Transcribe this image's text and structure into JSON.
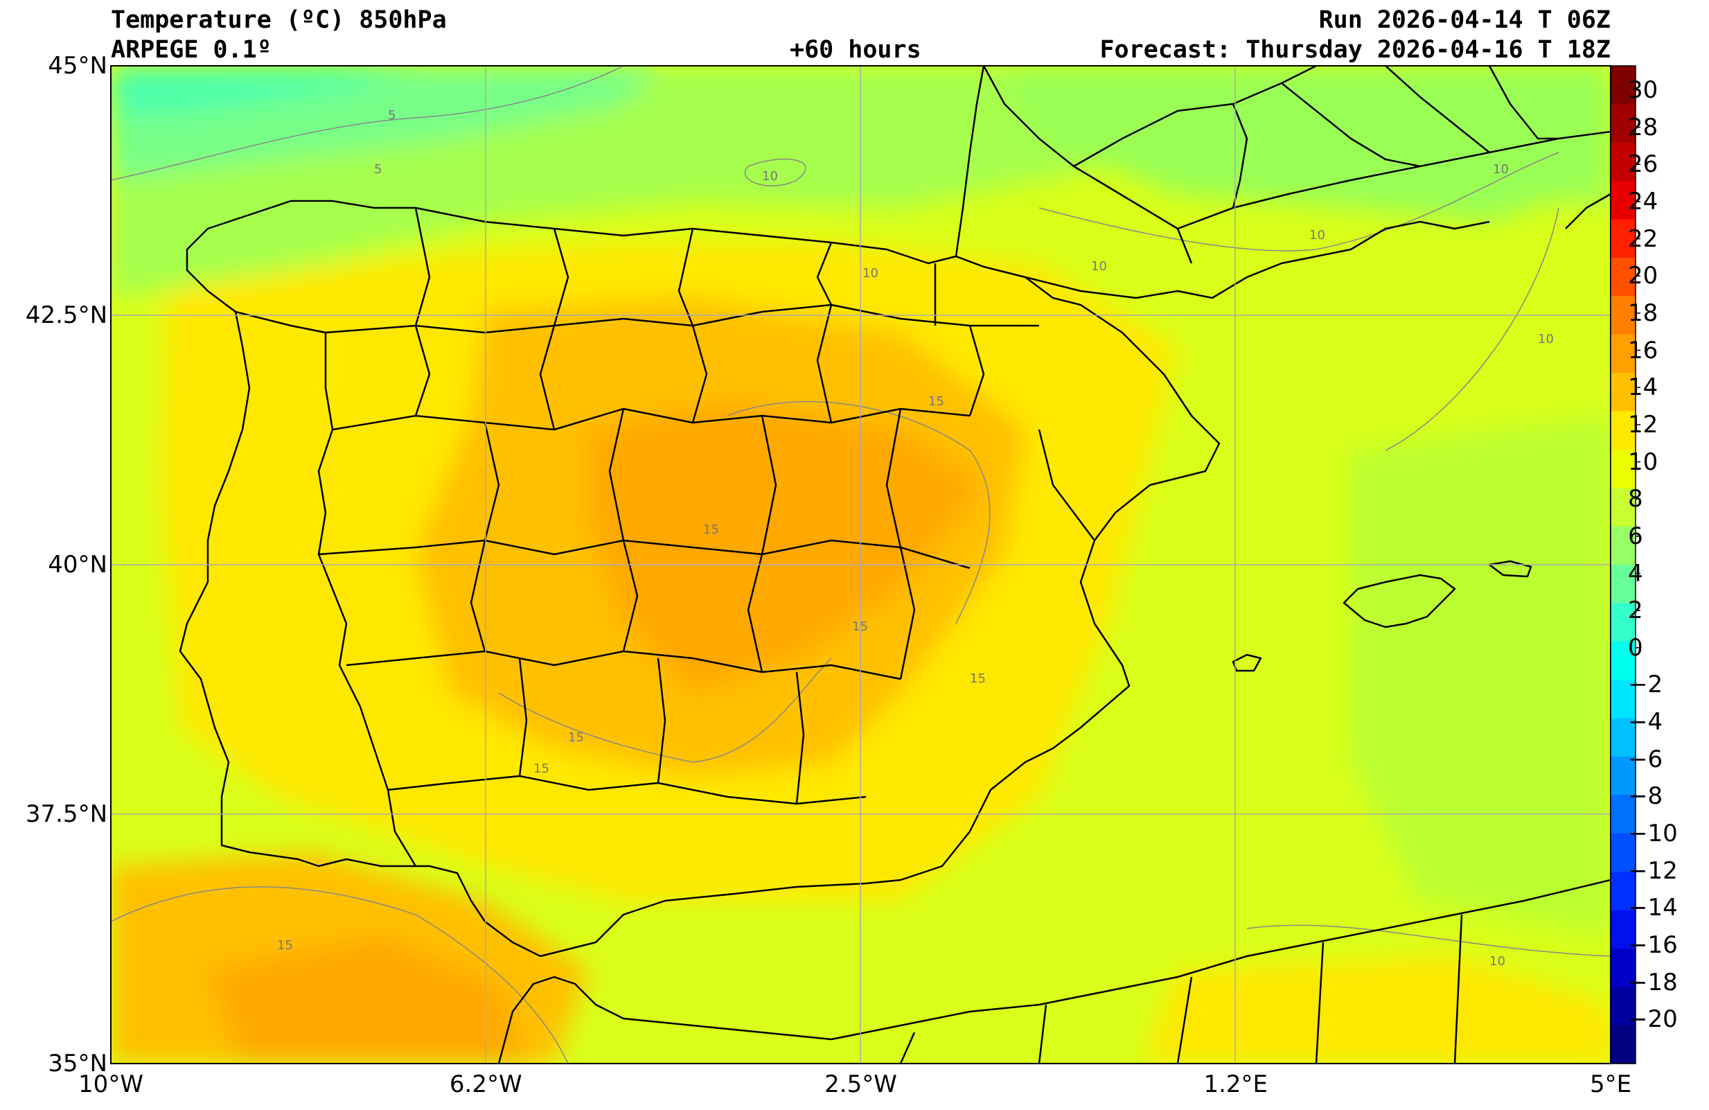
{
  "header": {
    "title": "Temperature (ºC) 850hPa",
    "model": "ARPEGE 0.1º",
    "lead_time": "+60 hours",
    "run": "Run 2026-04-14 T 06Z",
    "forecast": "Forecast: Thursday 2026-04-16 T 18Z"
  },
  "map": {
    "lat_ticks": [
      {
        "label": "45°N",
        "value": 45
      },
      {
        "label": "42.5°N",
        "value": 42.5
      },
      {
        "label": "40°N",
        "value": 40
      },
      {
        "label": "37.5°N",
        "value": 37.5
      },
      {
        "label": "35°N",
        "value": 35
      }
    ],
    "lon_ticks": [
      {
        "label": "10°W",
        "value": -10
      },
      {
        "label": "6.2°W",
        "value": -6.25
      },
      {
        "label": "2.5°W",
        "value": -2.5
      },
      {
        "label": "1.2°E",
        "value": 1.25
      },
      {
        "label": "5°E",
        "value": 5
      }
    ],
    "extent": {
      "lon": [
        -10,
        5
      ],
      "lat": [
        35,
        45
      ]
    },
    "contour_labels": [
      "5",
      "5",
      "10",
      "10",
      "10",
      "10",
      "10",
      "10",
      "15",
      "15",
      "15",
      "15",
      "15",
      "15",
      "15",
      "10"
    ]
  },
  "colorbar": {
    "labels": [
      "30",
      "28",
      "26",
      "24",
      "22",
      "20",
      "18",
      "16",
      "14",
      "12",
      "10",
      "8",
      "6",
      "4",
      "2",
      "0",
      "−2",
      "−4",
      "−6",
      "−8",
      "−10",
      "−12",
      "−14",
      "−16",
      "−18",
      "−20"
    ],
    "colors": [
      "#7f0000",
      "#a00000",
      "#c40000",
      "#e80000",
      "#ff2000",
      "#ff5000",
      "#ff8000",
      "#ffa000",
      "#ffc000",
      "#ffe800",
      "#ecff00",
      "#c8ff30",
      "#99ff66",
      "#66ff99",
      "#33ffcc",
      "#00ffee",
      "#00e6ff",
      "#00c0ff",
      "#0099ff",
      "#0070ff",
      "#0050ff",
      "#0030ff",
      "#0010ee",
      "#0000c8",
      "#0000a0",
      "#000080"
    ]
  }
}
